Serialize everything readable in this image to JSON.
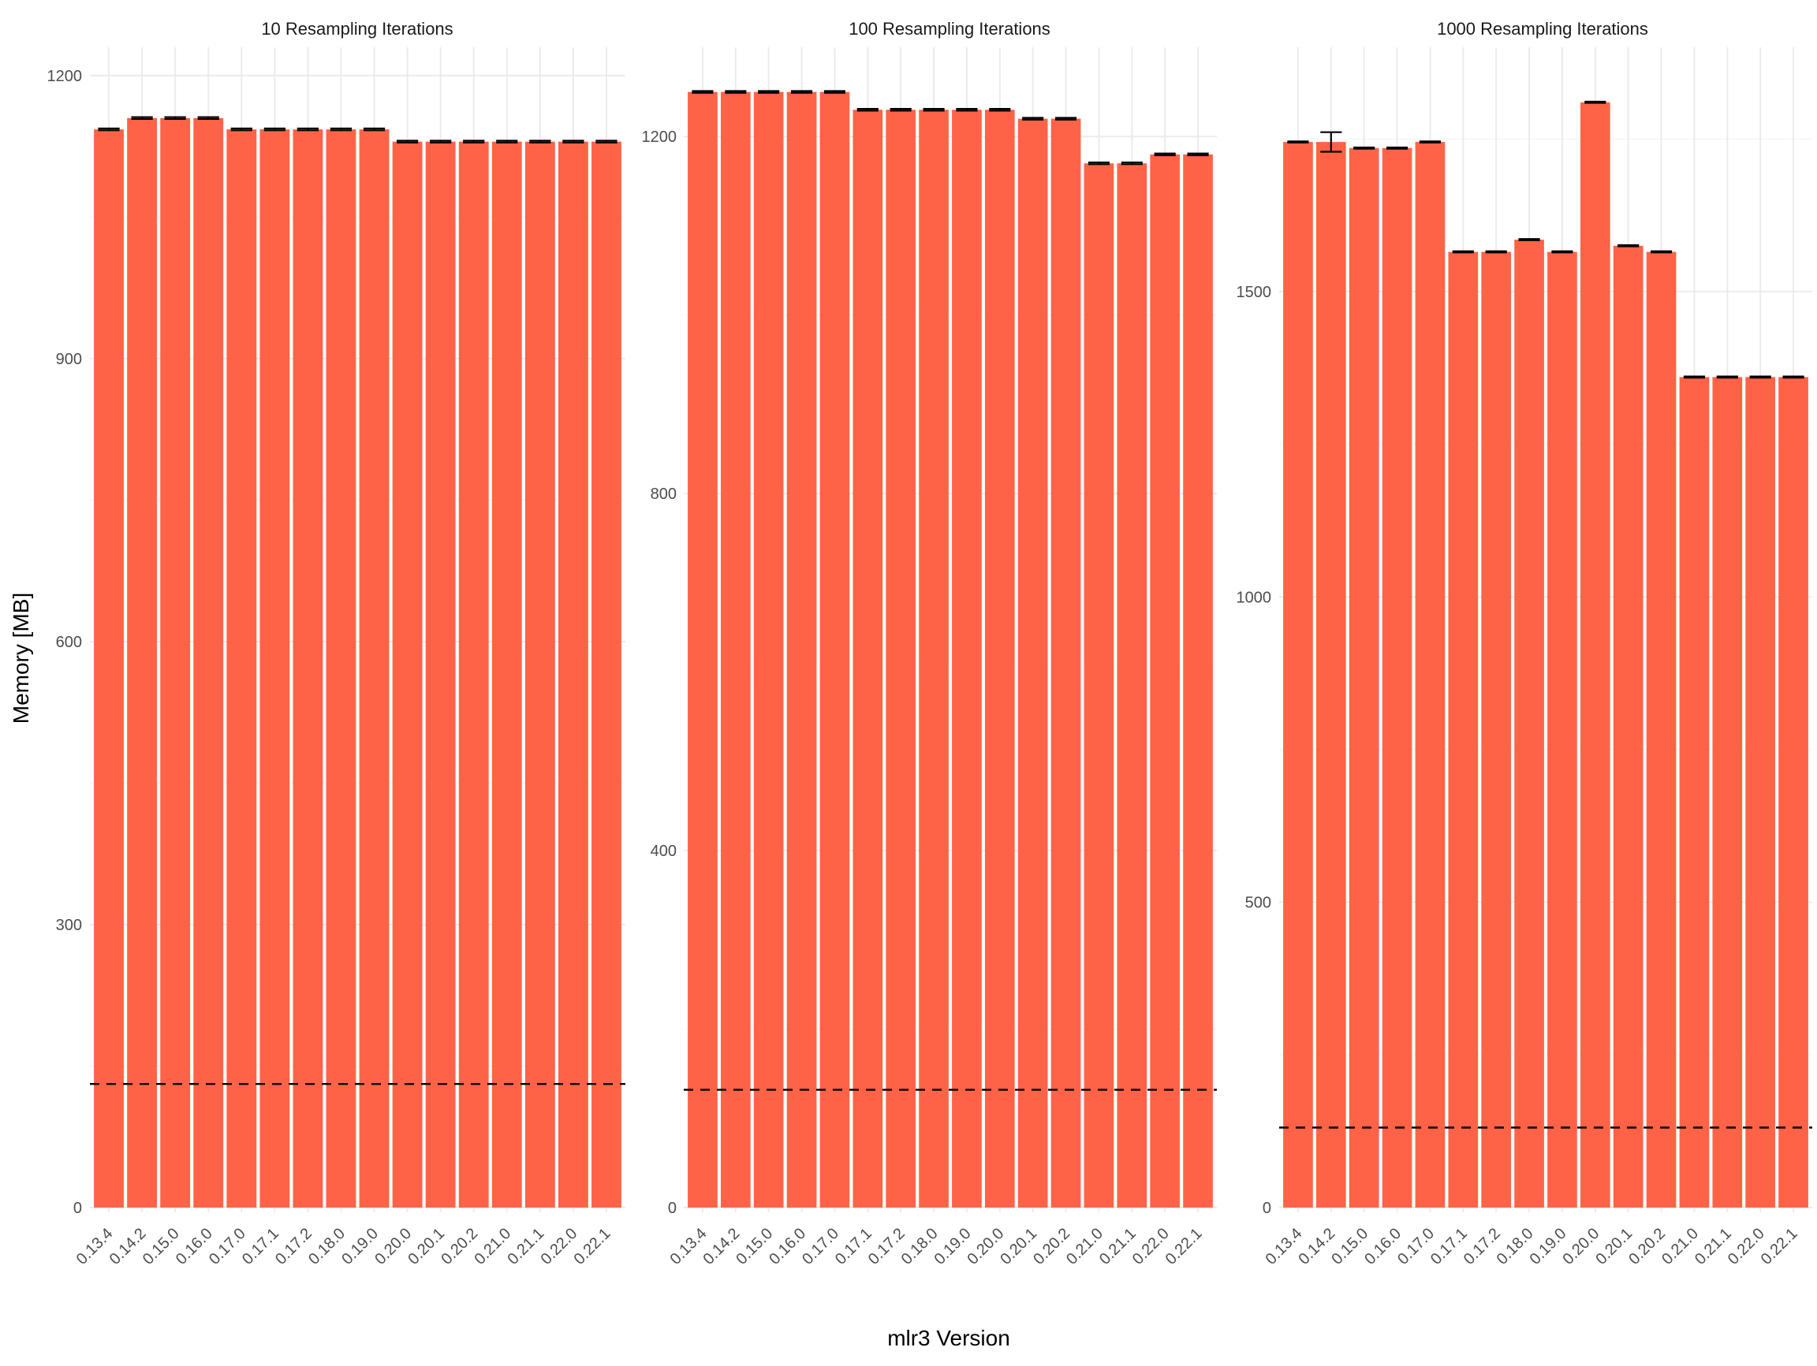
{
  "chart_data": {
    "type": "bar",
    "xlabel": "mlr3 Version",
    "ylabel": "Memory [MB]",
    "categories": [
      "0.13.4",
      "0.14.2",
      "0.15.0",
      "0.16.0",
      "0.17.0",
      "0.17.1",
      "0.17.2",
      "0.18.0",
      "0.19.0",
      "0.20.0",
      "0.20.1",
      "0.20.2",
      "0.21.0",
      "0.21.1",
      "0.22.0",
      "0.22.1"
    ],
    "bar_color": "#FF6347",
    "grid": true,
    "panels": [
      {
        "title": "10 Resampling Iterations",
        "ylim": [
          0,
          1230
        ],
        "yticks": [
          0,
          300,
          600,
          900,
          1200
        ],
        "values": [
          1143,
          1155,
          1155,
          1155,
          1143,
          1143,
          1143,
          1143,
          1143,
          1130,
          1130,
          1130,
          1130,
          1130,
          1130,
          1130
        ],
        "error": [
          1,
          1,
          1,
          1,
          1,
          1,
          1,
          1,
          1,
          1,
          1,
          1,
          1,
          1,
          1,
          1
        ],
        "hline": 131
      },
      {
        "title": "100 Resampling Iterations",
        "ylim": [
          0,
          1300
        ],
        "yticks": [
          0,
          400,
          800,
          1200
        ],
        "values": [
          1250,
          1250,
          1250,
          1250,
          1250,
          1230,
          1230,
          1230,
          1230,
          1230,
          1220,
          1220,
          1170,
          1170,
          1180,
          1180
        ],
        "error": [
          1,
          1,
          1,
          1,
          1,
          1,
          1,
          1,
          1,
          1,
          1,
          1,
          1,
          1,
          1,
          1
        ],
        "hline": 132
      },
      {
        "title": "1000 Resampling Iterations",
        "ylim": [
          0,
          1900
        ],
        "yticks": [
          0,
          500,
          1000,
          1500
        ],
        "values": [
          1745,
          1745,
          1735,
          1735,
          1745,
          1565,
          1565,
          1585,
          1565,
          1810,
          1575,
          1565,
          1360,
          1360,
          1360,
          1360
        ],
        "error": [
          1,
          16,
          1,
          1,
          1,
          1,
          1,
          1,
          1,
          1,
          1,
          1,
          1,
          1,
          1,
          1
        ],
        "hline": 131
      }
    ]
  }
}
